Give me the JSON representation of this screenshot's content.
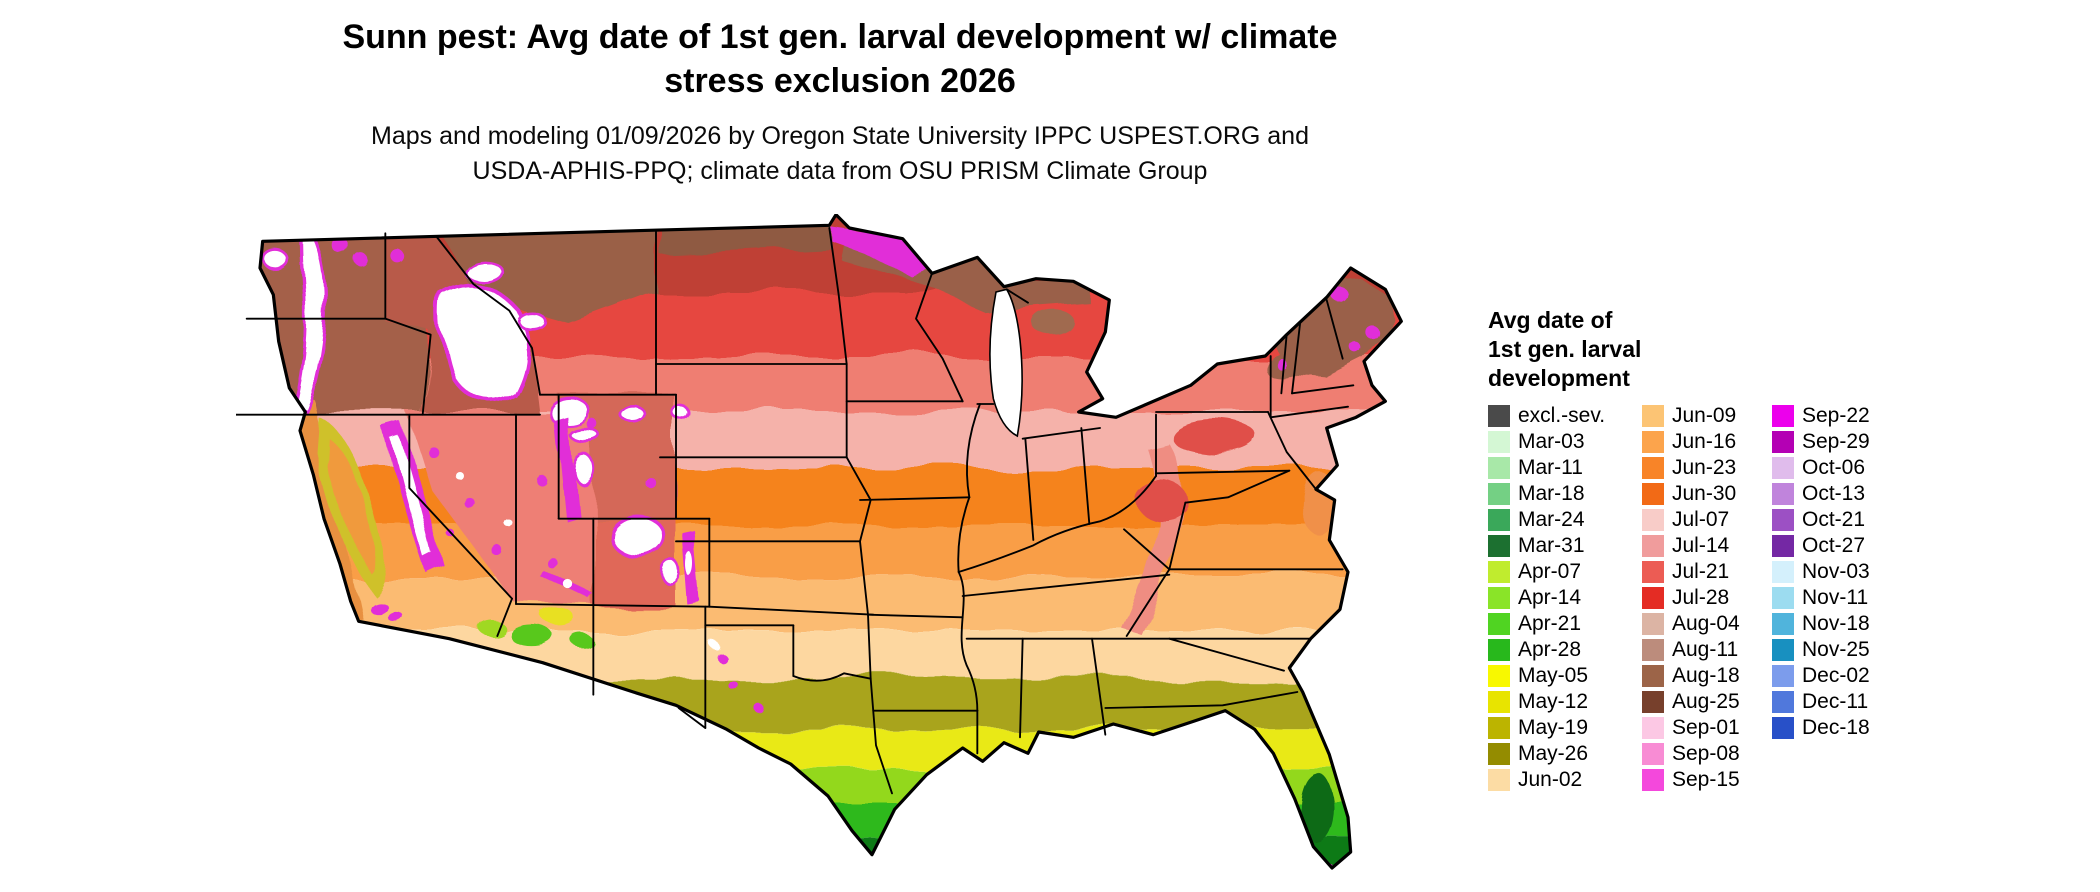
{
  "header": {
    "title_lines": [
      "Sunn pest: Avg date of 1st gen. larval development w/ climate",
      "stress exclusion 2026"
    ],
    "subtitle_lines": [
      "Maps and modeling 01/09/2026 by Oregon State University IPPC USPEST.ORG and",
      "USDA-APHIS-PPQ; climate data from OSU PRISM Climate Group"
    ]
  },
  "map": {
    "aria_label": "Choropleth map of the contiguous United States showing average date of first generation larval development: dark green (early March) in south Texas and Florida, greens and yellows along the Gulf Coast, olive and orange through the central states, pink and red in the upper Midwest and Northeast, brown along the northern tier, and magenta to white in the mountain West where dates are latest or excluded."
  },
  "legend": {
    "title_lines": [
      "Avg date of",
      "1st gen. larval",
      "development"
    ],
    "columns": [
      {
        "entries": [
          {
            "label": "excl.-sev.",
            "color": "#4a4a4a"
          },
          {
            "label": "Mar-03",
            "color": "#d4f7d4"
          },
          {
            "label": "Mar-11",
            "color": "#a8e8a8"
          },
          {
            "label": "Mar-18",
            "color": "#74d084"
          },
          {
            "label": "Mar-24",
            "color": "#3aa85a"
          },
          {
            "label": "Mar-31",
            "color": "#1c7030"
          },
          {
            "label": "Apr-07",
            "color": "#c0ec2e"
          },
          {
            "label": "Apr-14",
            "color": "#8ae428"
          },
          {
            "label": "Apr-21",
            "color": "#50d422"
          },
          {
            "label": "Apr-28",
            "color": "#28b81c"
          },
          {
            "label": "May-05",
            "color": "#f8f800"
          },
          {
            "label": "May-12",
            "color": "#e8e400"
          },
          {
            "label": "May-19",
            "color": "#bcb400"
          },
          {
            "label": "May-26",
            "color": "#948c00"
          },
          {
            "label": "Jun-02",
            "color": "#fcdca4"
          }
        ]
      },
      {
        "entries": [
          {
            "label": "Jun-09",
            "color": "#fcc474"
          },
          {
            "label": "Jun-16",
            "color": "#fca44c"
          },
          {
            "label": "Jun-23",
            "color": "#f88428"
          },
          {
            "label": "Jun-30",
            "color": "#f26a16"
          },
          {
            "label": "Jul-07",
            "color": "#f8ccc8"
          },
          {
            "label": "Jul-14",
            "color": "#f09c9c"
          },
          {
            "label": "Jul-21",
            "color": "#ec5c54"
          },
          {
            "label": "Jul-28",
            "color": "#e42c24"
          },
          {
            "label": "Aug-04",
            "color": "#dcb4a4"
          },
          {
            "label": "Aug-11",
            "color": "#bc8c7c"
          },
          {
            "label": "Aug-18",
            "color": "#9c6448"
          },
          {
            "label": "Aug-25",
            "color": "#77402c"
          },
          {
            "label": "Sep-01",
            "color": "#fcc8e4"
          },
          {
            "label": "Sep-08",
            "color": "#f88cd4"
          },
          {
            "label": "Sep-15",
            "color": "#f448dc"
          }
        ]
      },
      {
        "entries": [
          {
            "label": "Sep-22",
            "color": "#ec00ec"
          },
          {
            "label": "Sep-29",
            "color": "#b400b4"
          },
          {
            "label": "Oct-06",
            "color": "#e0bcec"
          },
          {
            "label": "Oct-13",
            "color": "#c084dc"
          },
          {
            "label": "Oct-21",
            "color": "#9c50c4"
          },
          {
            "label": "Oct-27",
            "color": "#7428a4"
          },
          {
            "label": "Nov-03",
            "color": "#d4f0fc"
          },
          {
            "label": "Nov-11",
            "color": "#9cdcf0"
          },
          {
            "label": "Nov-18",
            "color": "#50b4dc"
          },
          {
            "label": "Nov-25",
            "color": "#1890c0"
          },
          {
            "label": "Dec-02",
            "color": "#7c9cec"
          },
          {
            "label": "Dec-11",
            "color": "#5078dc"
          },
          {
            "label": "Dec-18",
            "color": "#2850c8"
          }
        ]
      }
    ]
  }
}
